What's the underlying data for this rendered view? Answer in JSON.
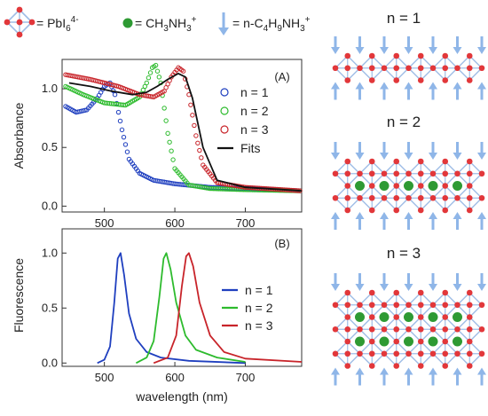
{
  "legend_top": {
    "octahedron": "= PbI",
    "octahedron_sub": "6",
    "octahedron_sup": "4-",
    "methylammonium": "= CH",
    "methylammonium_sub1": "3",
    "methylammonium_mid": "NH",
    "methylammonium_sub2": "3",
    "methylammonium_sup": "+",
    "butylammonium": "= n-C",
    "butylammonium_sub1": "4",
    "butylammonium_mid": "H",
    "butylammonium_sub2": "9",
    "butylammonium_mid2": "NH",
    "butylammonium_sub3": "3",
    "butylammonium_sup": "+"
  },
  "structures": [
    {
      "label": "n = 1",
      "layers": 1
    },
    {
      "label": "n = 2",
      "layers": 2
    },
    {
      "label": "n = 3",
      "layers": 3
    }
  ],
  "colors": {
    "n1": "#1f3fbf",
    "n2": "#2dbb2d",
    "n3": "#c8242a",
    "fit": "#111111",
    "lattice": "#9fbde6",
    "node": "#e2373a",
    "cation": "#2e9a33",
    "arrow": "#8fb6e8"
  },
  "chart_data": [
    {
      "type": "line",
      "panel_label": "(A)",
      "xlabel": "",
      "ylabel": "Absorbance",
      "xlim": [
        440,
        780
      ],
      "ylim": [
        -0.05,
        1.25
      ],
      "xticks": [
        500,
        600,
        700
      ],
      "yticks": [
        0.0,
        0.5,
        1.0
      ],
      "ytick_labels": [
        "0.0",
        "0.5",
        "1.0"
      ],
      "legend_position": "right",
      "series": [
        {
          "name": "n = 1",
          "style": "markers",
          "x": [
            445,
            460,
            475,
            490,
            500,
            508,
            515,
            525,
            535,
            550,
            570,
            600,
            650,
            700,
            780
          ],
          "y": [
            0.85,
            0.8,
            0.82,
            0.92,
            1.02,
            1.05,
            0.95,
            0.65,
            0.4,
            0.28,
            0.22,
            0.19,
            0.16,
            0.15,
            0.13
          ]
        },
        {
          "name": "n = 2",
          "style": "markers",
          "x": [
            445,
            470,
            500,
            530,
            550,
            560,
            568,
            573,
            580,
            590,
            600,
            620,
            650,
            700,
            780
          ],
          "y": [
            1.02,
            0.95,
            0.88,
            0.86,
            0.93,
            1.05,
            1.18,
            1.2,
            1.05,
            0.62,
            0.32,
            0.18,
            0.15,
            0.14,
            0.13
          ]
        },
        {
          "name": "n = 3",
          "style": "markers",
          "x": [
            445,
            480,
            520,
            550,
            570,
            585,
            595,
            605,
            612,
            620,
            630,
            640,
            660,
            700,
            780
          ],
          "y": [
            1.12,
            1.08,
            1.02,
            0.95,
            0.93,
            0.98,
            1.1,
            1.18,
            1.15,
            0.95,
            0.6,
            0.35,
            0.2,
            0.16,
            0.13
          ]
        },
        {
          "name": "Fits",
          "style": "line",
          "x": [
            450,
            480,
            510,
            540,
            560,
            575,
            590,
            605,
            615,
            625,
            640,
            660,
            700,
            780
          ],
          "y": [
            1.05,
            1.02,
            0.98,
            0.95,
            0.97,
            1.02,
            1.08,
            1.13,
            1.1,
            0.92,
            0.5,
            0.22,
            0.16,
            0.13
          ]
        }
      ]
    },
    {
      "type": "line",
      "panel_label": "(B)",
      "xlabel": "wavelength (nm)",
      "ylabel": "Fluorescence",
      "xlim": [
        440,
        780
      ],
      "ylim": [
        -0.03,
        1.22
      ],
      "xticks": [
        500,
        600,
        700
      ],
      "yticks": [
        0.0,
        0.5,
        1.0
      ],
      "ytick_labels": [
        "0.0",
        "0.5",
        "1.0"
      ],
      "legend_position": "right",
      "series": [
        {
          "name": "n = 1",
          "x": [
            490,
            500,
            508,
            514,
            519,
            523,
            528,
            535,
            545,
            560,
            580,
            620,
            700
          ],
          "y": [
            0.0,
            0.03,
            0.15,
            0.55,
            0.95,
            1.0,
            0.8,
            0.45,
            0.22,
            0.1,
            0.05,
            0.02,
            0.0
          ]
        },
        {
          "name": "n = 2",
          "x": [
            545,
            560,
            570,
            578,
            584,
            588,
            594,
            602,
            615,
            630,
            660,
            700
          ],
          "y": [
            0.0,
            0.05,
            0.2,
            0.6,
            0.95,
            1.0,
            0.85,
            0.55,
            0.25,
            0.12,
            0.05,
            0.01
          ]
        },
        {
          "name": "n = 3",
          "x": [
            570,
            590,
            602,
            610,
            616,
            620,
            626,
            635,
            650,
            670,
            700,
            780
          ],
          "y": [
            0.0,
            0.05,
            0.25,
            0.7,
            0.97,
            1.0,
            0.88,
            0.55,
            0.25,
            0.1,
            0.04,
            0.01
          ]
        }
      ]
    }
  ]
}
